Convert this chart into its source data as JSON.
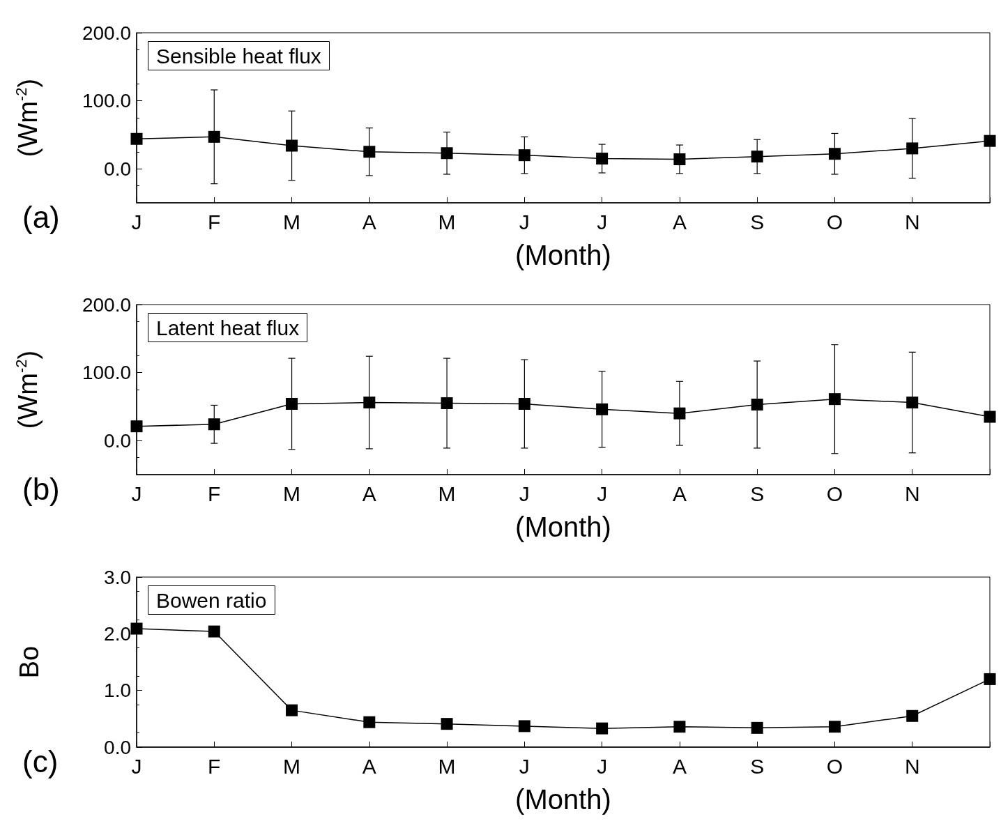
{
  "chart_data": [
    {
      "type": "line",
      "title": "Sensible heat flux",
      "xlabel": "(Month)",
      "ylabel": "(Wm$^{-2}$)",
      "annotations": [
        "(a)"
      ],
      "categories": [
        "J",
        "F",
        "M",
        "A",
        "M",
        "J",
        "J",
        "A",
        "S",
        "O",
        "N",
        null
      ],
      "series": [
        {
          "color": "#000000",
          "values": [
            44,
            47,
            34,
            25,
            23,
            20,
            15,
            14,
            18,
            22,
            30,
            41
          ],
          "errors": [
            null,
            69,
            51,
            35,
            31,
            27,
            21,
            21,
            25,
            30,
            44,
            null
          ]
        }
      ],
      "ylim": [
        -50,
        200
      ],
      "yticks": [
        {
          "value": 0,
          "label": "0.0"
        },
        {
          "value": 100,
          "label": "100.0"
        },
        {
          "value": 200,
          "label": "200.0"
        }
      ],
      "grid": false,
      "marker": "square",
      "line_style": "solid"
    },
    {
      "type": "line",
      "title": "Latent heat flux",
      "xlabel": "(Month)",
      "ylabel": "(Wm$^{-2}$)",
      "annotations": [
        "(b)"
      ],
      "categories": [
        "J",
        "F",
        "M",
        "A",
        "M",
        "J",
        "J",
        "A",
        "S",
        "O",
        "N",
        null
      ],
      "series": [
        {
          "color": "#000000",
          "values": [
            21,
            24,
            54,
            56,
            55,
            54,
            46,
            40,
            53,
            61,
            56,
            35
          ],
          "errors": [
            null,
            28,
            67,
            68,
            66,
            65,
            56,
            47,
            64,
            80,
            74,
            null
          ]
        }
      ],
      "ylim": [
        -50,
        200
      ],
      "yticks": [
        {
          "value": 0,
          "label": "0.0"
        },
        {
          "value": 100,
          "label": "100.0"
        },
        {
          "value": 200,
          "label": "200.0"
        }
      ],
      "grid": false,
      "marker": "square",
      "line_style": "solid"
    },
    {
      "type": "line",
      "title": "Bowen ratio",
      "xlabel": "(Month)",
      "ylabel": "Bo",
      "annotations": [
        "(c)"
      ],
      "categories": [
        "J",
        "F",
        "M",
        "A",
        "M",
        "J",
        "J",
        "A",
        "S",
        "O",
        "N",
        null
      ],
      "series": [
        {
          "color": "#000000",
          "values": [
            2.09,
            2.04,
            0.65,
            0.44,
            0.41,
            0.37,
            0.33,
            0.36,
            0.34,
            0.36,
            0.55,
            1.2
          ]
        }
      ],
      "ylim": [
        0,
        3
      ],
      "yticks": [
        {
          "value": 0,
          "label": "0.0"
        },
        {
          "value": 1,
          "label": "1.0"
        },
        {
          "value": 2,
          "label": "2.0"
        },
        {
          "value": 3,
          "label": "3.0"
        }
      ],
      "grid": false,
      "marker": "square",
      "line_style": "solid"
    }
  ]
}
